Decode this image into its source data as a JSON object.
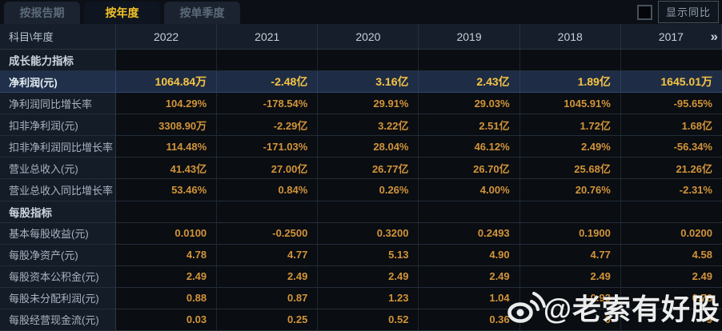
{
  "tabs": [
    {
      "id": "report-period",
      "label": "按报告期",
      "active": false
    },
    {
      "id": "annual",
      "label": "按年度",
      "active": true
    },
    {
      "id": "single-quarter",
      "label": "按单季度",
      "active": false
    }
  ],
  "controls": {
    "show_yoy_label": "显示同比",
    "checkbox_checked": false
  },
  "table": {
    "corner_label": "科目\\年度",
    "years": [
      "2022",
      "2021",
      "2020",
      "2019",
      "2018",
      "2017"
    ],
    "more_icon": "»",
    "rows": [
      {
        "type": "section",
        "label": "成长能力指标"
      },
      {
        "type": "data",
        "highlight": true,
        "label": "净利润(元)",
        "values": [
          "1064.84万",
          "-2.48亿",
          "3.16亿",
          "2.43亿",
          "1.89亿",
          "1645.01万"
        ]
      },
      {
        "type": "data",
        "label": "净利润同比增长率",
        "values": [
          "104.29%",
          "-178.54%",
          "29.91%",
          "29.03%",
          "1045.91%",
          "-95.65%"
        ]
      },
      {
        "type": "data",
        "label": "扣非净利润(元)",
        "values": [
          "3308.90万",
          "-2.29亿",
          "3.22亿",
          "2.51亿",
          "1.72亿",
          "1.68亿"
        ]
      },
      {
        "type": "data",
        "label": "扣非净利润同比增长率",
        "values": [
          "114.48%",
          "-171.03%",
          "28.04%",
          "46.12%",
          "2.49%",
          "-56.34%"
        ]
      },
      {
        "type": "data",
        "label": "营业总收入(元)",
        "values": [
          "41.43亿",
          "27.00亿",
          "26.77亿",
          "26.70亿",
          "25.68亿",
          "21.26亿"
        ]
      },
      {
        "type": "data",
        "label": "营业总收入同比增长率",
        "values": [
          "53.46%",
          "0.84%",
          "0.26%",
          "4.00%",
          "20.76%",
          "-2.31%"
        ]
      },
      {
        "type": "section",
        "label": "每股指标"
      },
      {
        "type": "data",
        "label": "基本每股收益(元)",
        "values": [
          "0.0100",
          "-0.2500",
          "0.3200",
          "0.2493",
          "0.1900",
          "0.0200"
        ]
      },
      {
        "type": "data",
        "label": "每股净资产(元)",
        "values": [
          "4.78",
          "4.77",
          "5.13",
          "4.90",
          "4.77",
          "4.58"
        ]
      },
      {
        "type": "data",
        "label": "每股资本公积金(元)",
        "values": [
          "2.49",
          "2.49",
          "2.49",
          "2.49",
          "2.49",
          "2.49"
        ]
      },
      {
        "type": "data",
        "label": "每股未分配利润(元)",
        "values": [
          "0.88",
          "0.87",
          "1.23",
          "1.04",
          "0.93",
          "0.76"
        ]
      },
      {
        "type": "data",
        "label": "每股经营现金流(元)",
        "values": [
          "0.03",
          "0.25",
          "0.52",
          "0.36",
          "0",
          "9"
        ]
      }
    ]
  },
  "watermark": {
    "text": "@老索有好股",
    "icon": "weibo-logo"
  },
  "colors": {
    "active_tab_text": "#f3c229",
    "value_gold": "#d2943a",
    "highlight_value_gold": "#f6c445",
    "highlight_row_bg": "#1e2c45",
    "label_column_bg": "#141c28",
    "data_cell_bg": "#0a0d11",
    "watermark": "#ffffff"
  }
}
